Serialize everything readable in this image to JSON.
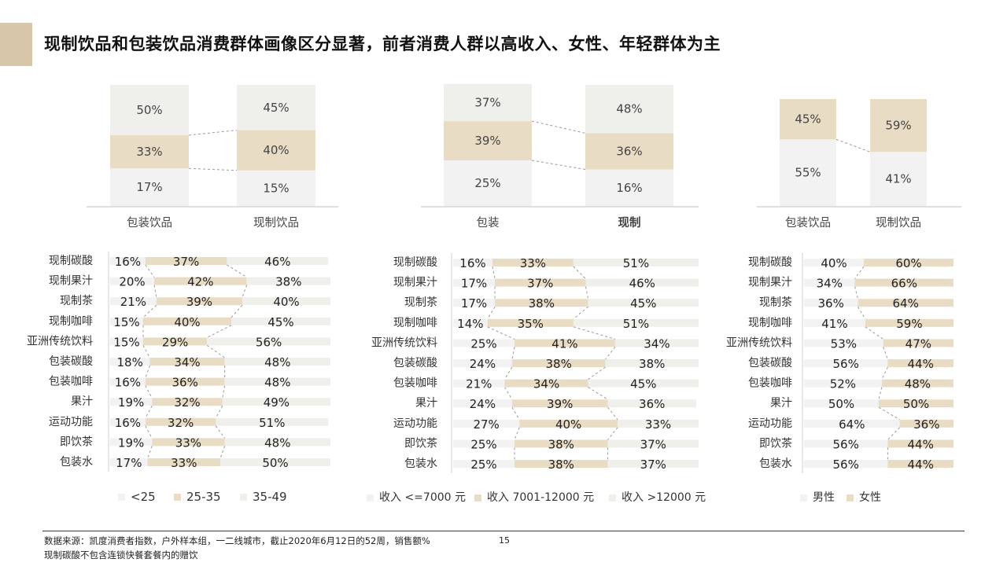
{
  "title": "现制饮品和包装饮品消费群体画像区分显著，前者消费人群以高收入、女性、年轻群体为主",
  "footer": {
    "source": "数据来源：凯度消费者指数，户外样本组，一二线城市，截止2020年6月12日的52周，销售额%",
    "note": "现制碳酸不包含连锁快餐套餐内的赠饮",
    "page": "15"
  },
  "colors": {
    "light": "#efefeb",
    "tan": "#e9dcc5",
    "lightgray": "#f2f2f2",
    "accent": "#d8c6a8",
    "footer_line": "#7a2030"
  },
  "chart_data": [
    {
      "type": "bar",
      "stacked": true,
      "normalized": true,
      "categories": [
        "包装饮品",
        "现制饮品"
      ],
      "series": [
        {
          "name": "<25",
          "values": [
            17,
            15
          ]
        },
        {
          "name": "25-35",
          "values": [
            33,
            40
          ]
        },
        {
          "name": "35-49",
          "values": [
            50,
            45
          ]
        }
      ]
    },
    {
      "type": "bar",
      "stacked": true,
      "normalized": true,
      "categories": [
        "包装",
        "现制"
      ],
      "series": [
        {
          "name": "收入 <=7000 元",
          "values": [
            25,
            16
          ]
        },
        {
          "name": "收入 7001-12000 元",
          "values": [
            39,
            36
          ]
        },
        {
          "name": "收入 >12000 元",
          "values": [
            37,
            48
          ]
        }
      ]
    },
    {
      "type": "bar",
      "stacked": true,
      "normalized": true,
      "categories": [
        "包装饮品",
        "现制饮品"
      ],
      "series": [
        {
          "name": "男性",
          "values": [
            55,
            41
          ]
        },
        {
          "name": "女性",
          "values": [
            45,
            59
          ]
        }
      ]
    },
    {
      "type": "bar",
      "stacked": true,
      "horizontal": true,
      "categories": [
        "现制碳酸",
        "现制果汁",
        "现制茶",
        "现制咖啡",
        "亚洲传统饮料",
        "包装碳酸",
        "包装咖啡",
        "果汁",
        "运动功能",
        "即饮茶",
        "包装水"
      ],
      "series": [
        {
          "name": "<25",
          "values": [
            16,
            20,
            21,
            15,
            15,
            18,
            16,
            19,
            16,
            19,
            17
          ]
        },
        {
          "name": "25-35",
          "values": [
            37,
            42,
            39,
            40,
            29,
            34,
            36,
            32,
            32,
            33,
            33
          ]
        },
        {
          "name": "35-49",
          "values": [
            46,
            38,
            40,
            45,
            56,
            48,
            48,
            49,
            51,
            48,
            50
          ]
        }
      ],
      "legend": [
        "<25",
        "25-35",
        "35-49"
      ],
      "legend_position": "bottom"
    },
    {
      "type": "bar",
      "stacked": true,
      "horizontal": true,
      "categories": [
        "现制碳酸",
        "现制果汁",
        "现制茶",
        "现制咖啡",
        "亚洲传统饮料",
        "包装碳酸",
        "包装咖啡",
        "果汁",
        "运动功能",
        "即饮茶",
        "包装水"
      ],
      "series": [
        {
          "name": "收入 <=7000 元",
          "values": [
            16,
            17,
            17,
            14,
            25,
            24,
            21,
            24,
            27,
            25,
            25
          ]
        },
        {
          "name": "收入 7001-12000 元",
          "values": [
            33,
            37,
            38,
            35,
            41,
            38,
            34,
            39,
            40,
            38,
            38
          ]
        },
        {
          "name": "收入 >12000 元",
          "values": [
            51,
            46,
            45,
            51,
            34,
            38,
            45,
            36,
            33,
            37,
            37
          ]
        }
      ],
      "legend": [
        "收入 <=7000 元",
        "收入 7001-12000 元",
        "收入 >12000 元"
      ],
      "legend_position": "bottom"
    },
    {
      "type": "bar",
      "stacked": true,
      "horizontal": true,
      "categories": [
        "现制碳酸",
        "现制果汁",
        "现制茶",
        "现制咖啡",
        "亚洲传统饮料",
        "包装碳酸",
        "包装咖啡",
        "果汁",
        "运动功能",
        "即饮茶",
        "包装水"
      ],
      "series": [
        {
          "name": "男性",
          "values": [
            40,
            34,
            36,
            41,
            53,
            56,
            52,
            50,
            64,
            56,
            56
          ]
        },
        {
          "name": "女性",
          "values": [
            60,
            66,
            64,
            59,
            47,
            44,
            48,
            50,
            36,
            44,
            44
          ]
        }
      ],
      "legend": [
        "男性",
        "女性"
      ],
      "legend_position": "bottom"
    }
  ]
}
